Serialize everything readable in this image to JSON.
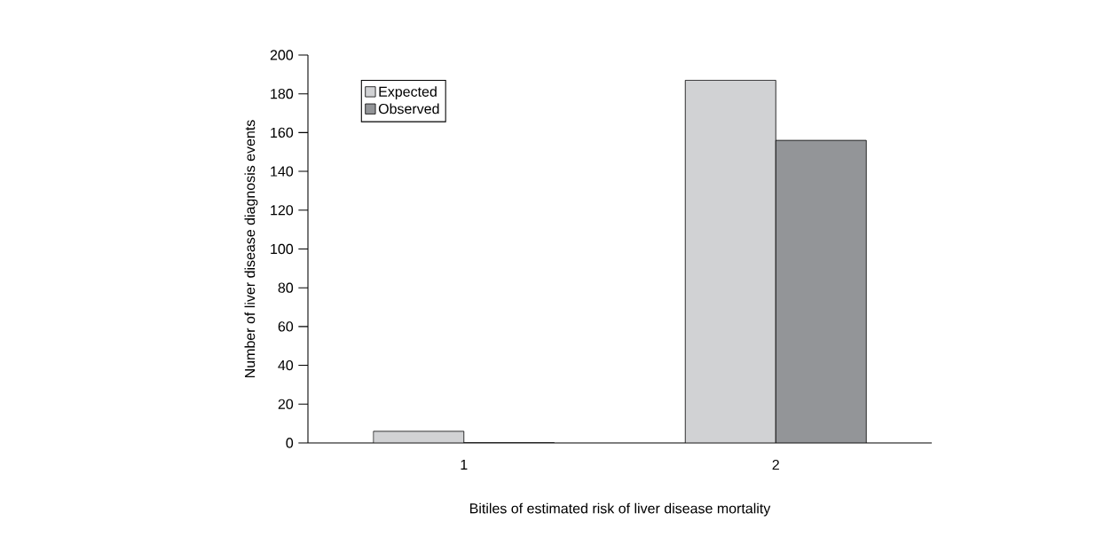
{
  "chart_data": {
    "type": "bar",
    "xlabel": "Bitiles of estimated risk of liver disease mortality",
    "ylabel": "Number of liver disease diagnosis events",
    "categories": [
      "1",
      "2"
    ],
    "series": [
      {
        "name": "Expected",
        "color": "#d1d2d4",
        "values": [
          6,
          187
        ]
      },
      {
        "name": "Observed",
        "color": "#939598",
        "values": [
          0,
          156
        ]
      }
    ],
    "ylim": [
      0,
      200
    ],
    "yticks": [
      0,
      20,
      40,
      60,
      80,
      100,
      120,
      140,
      160,
      180,
      200
    ],
    "grid": false,
    "legend": "top left"
  }
}
